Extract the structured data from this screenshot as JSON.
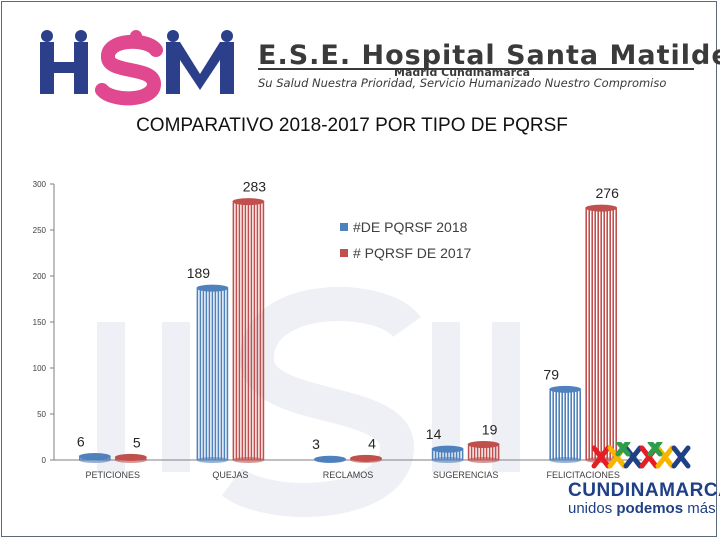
{
  "header": {
    "logo_text": "HSM",
    "org_name": "E.S.E. Hospital Santa Matilde",
    "city": "Madrid Cundinamarca",
    "slogan": "Su Salud Nuestra Prioridad, Servicio Humanizado Nuestro Compromiso"
  },
  "footer_logo": {
    "name": "CUNDINAMARCA",
    "tagline_a": "unidos ",
    "tagline_b": "podemos",
    "tagline_c": " más"
  },
  "colors": {
    "series_2018": "#4f81bd",
    "series_2017": "#c0504d",
    "axis": "#7f7f7f",
    "watermark": "#eef0f6"
  },
  "chart_data": {
    "type": "bar",
    "title": "COMPARATIVO 2018-2017 POR TIPO DE PQRSF",
    "categories": [
      "PETICIONES",
      "QUEJAS",
      "RECLAMOS",
      "SUGERENCIAS",
      "FELICITACIONES"
    ],
    "series": [
      {
        "name": "#DE PQRSF 2018",
        "values": [
          6,
          189,
          3,
          14,
          79
        ]
      },
      {
        "name": "# PQRSF DE 2017",
        "values": [
          5,
          283,
          4,
          19,
          276
        ]
      }
    ],
    "y_ticks": [
      "0",
      "50",
      "100",
      "150",
      "200",
      "250",
      "300"
    ],
    "ylim": [
      0,
      300
    ],
    "legend_position": "top-center",
    "grid": false
  }
}
